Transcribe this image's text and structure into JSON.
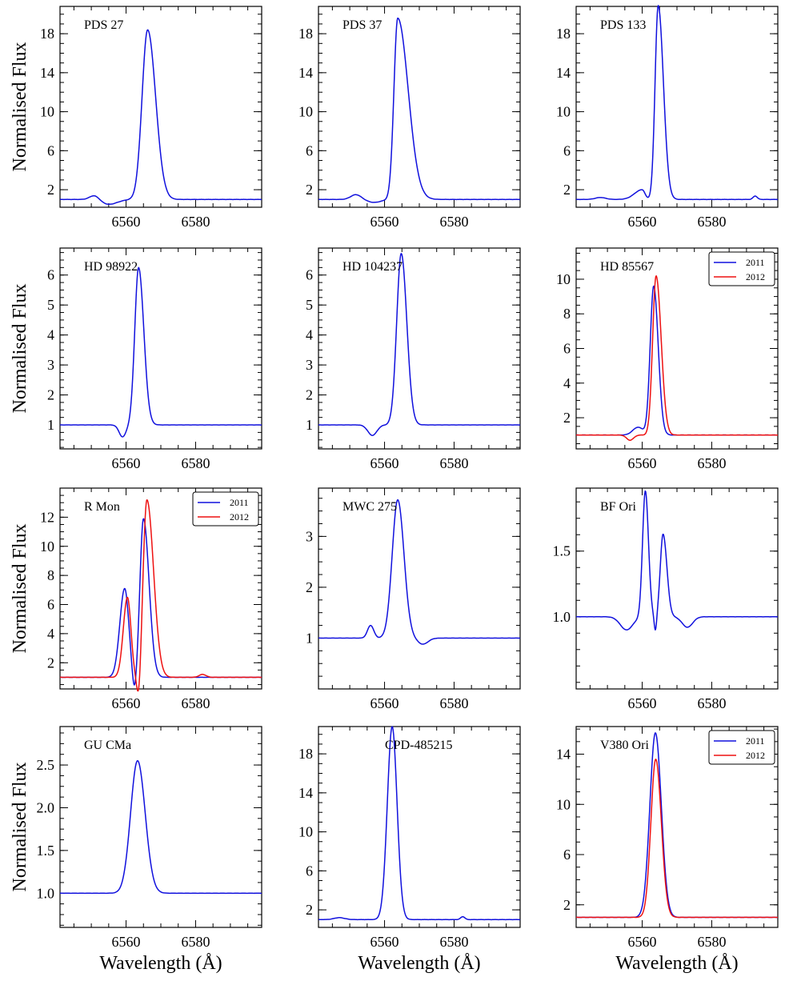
{
  "chart_data": {
    "type": "line",
    "xlabel": "Wavelength (Å)",
    "ylabel": "Normalised Flux",
    "xlim": [
      6541,
      6599
    ],
    "xticks": [
      6560,
      6580
    ],
    "colors": {
      "2011": "#1010dd",
      "2012": "#ee1111"
    },
    "panels": [
      {
        "title": "PDS 27",
        "ylim": [
          0.2,
          20.8
        ],
        "yticks": [
          2,
          6,
          10,
          14,
          18
        ],
        "legend": false,
        "series": [
          {
            "name": "2011",
            "peaks": [
              [
                6566.2,
                17.4,
                1.6,
                2.3
              ],
              [
                6551,
                0.5,
                1.4,
                1.4
              ],
              [
                6555,
                -0.5,
                2.5,
                2.5
              ]
            ]
          }
        ]
      },
      {
        "title": "PDS 37",
        "ylim": [
          0.2,
          20.8
        ],
        "yticks": [
          2,
          6,
          10,
          14,
          18
        ],
        "legend": false,
        "series": [
          {
            "name": "2011",
            "peaks": [
              [
                6563.8,
                18.6,
                1.1,
                3.0
              ],
              [
                6551.8,
                0.5,
                1.5,
                1.5
              ],
              [
                6557,
                -0.3,
                2,
                2
              ]
            ]
          }
        ]
      },
      {
        "title": "PDS 133",
        "ylim": [
          0.2,
          20.8
        ],
        "yticks": [
          2,
          6,
          10,
          14,
          18
        ],
        "legend": false,
        "series": [
          {
            "name": "2011",
            "peaks": [
              [
                6564.6,
                19.9,
                0.9,
                1.5
              ],
              [
                6560,
                1.0,
                2.2,
                0.8
              ],
              [
                6592.5,
                0.35,
                0.6,
                0.6
              ],
              [
                6548,
                0.2,
                1.5,
                1.5
              ]
            ]
          }
        ]
      },
      {
        "title": "HD 98922",
        "ylim": [
          0.2,
          6.9
        ],
        "yticks": [
          1,
          2,
          3,
          4,
          5,
          6
        ],
        "legend": false,
        "series": [
          {
            "name": "2011",
            "peaks": [
              [
                6563.6,
                5.25,
                1.1,
                1.5
              ],
              [
                6559,
                -0.4,
                1.0,
                1.0
              ]
            ]
          }
        ]
      },
      {
        "title": "HD 104237",
        "ylim": [
          0.2,
          6.9
        ],
        "yticks": [
          1,
          2,
          3,
          4,
          5,
          6
        ],
        "legend": false,
        "series": [
          {
            "name": "2011",
            "peaks": [
              [
                6564.8,
                5.72,
                1.3,
                1.6
              ],
              [
                6556.5,
                -0.35,
                1.3,
                1.3
              ]
            ]
          }
        ]
      },
      {
        "title": "HD 85567",
        "ylim": [
          0.2,
          11.8
        ],
        "yticks": [
          2,
          4,
          6,
          8,
          10
        ],
        "legend": true,
        "series": [
          {
            "name": "2011",
            "peaks": [
              [
                6563.3,
                8.6,
                1.0,
                1.3
              ],
              [
                6558.8,
                0.45,
                1.5,
                1.5
              ]
            ]
          },
          {
            "name": "2012",
            "peaks": [
              [
                6564.0,
                9.2,
                1.0,
                1.45
              ],
              [
                6556.5,
                -0.3,
                1.0,
                1.0
              ]
            ]
          }
        ]
      },
      {
        "title": "R Mon",
        "ylim": [
          0.2,
          14.0
        ],
        "yticks": [
          2,
          4,
          6,
          8,
          10,
          12
        ],
        "legend": true,
        "series": [
          {
            "name": "2011",
            "peaks": [
              [
                6565.0,
                10.9,
                1.0,
                1.6
              ],
              [
                6559.6,
                6.1,
                1.4,
                1.2
              ],
              [
                6562.4,
                -1.3,
                0.6,
                0.6
              ]
            ]
          },
          {
            "name": "2012",
            "peaks": [
              [
                6566.0,
                12.2,
                1.1,
                1.9
              ],
              [
                6560.4,
                5.5,
                1.2,
                1.0
              ],
              [
                6563.7,
                -2.0,
                0.6,
                0.6
              ],
              [
                6582,
                0.2,
                1.0,
                1.0
              ]
            ]
          }
        ]
      },
      {
        "title": "MWC 275",
        "ylim": [
          0.0,
          3.95
        ],
        "yticks": [
          1,
          2,
          3
        ],
        "legend": false,
        "series": [
          {
            "name": "2011",
            "peaks": [
              [
                6563.8,
                2.72,
                1.6,
                1.8
              ],
              [
                6556,
                0.25,
                0.9,
                0.9
              ],
              [
                6571,
                -0.12,
                1.5,
                1.5
              ]
            ]
          }
        ]
      },
      {
        "title": "BF Ori",
        "ylim": [
          0.45,
          1.98
        ],
        "yticks": [
          1.0,
          1.5
        ],
        "legend": false,
        "series": [
          {
            "name": "2011",
            "peaks": [
              [
                6560.9,
                0.96,
                0.8,
                0.9
              ],
              [
                6566.0,
                0.63,
                0.8,
                1.1
              ],
              [
                6563.8,
                -0.12,
                0.35,
                0.35
              ],
              [
                6555.5,
                -0.1,
                1.8,
                1.8
              ],
              [
                6573,
                -0.08,
                1.5,
                1.5
              ]
            ]
          }
        ]
      },
      {
        "title": "GU CMa",
        "ylim": [
          0.6,
          2.95
        ],
        "yticks": [
          1.0,
          1.5,
          2.0,
          2.5
        ],
        "legend": false,
        "series": [
          {
            "name": "2011",
            "peaks": [
              [
                6563.3,
                1.55,
                2.0,
                2.2
              ]
            ]
          }
        ]
      },
      {
        "title": "CPD-485215",
        "ylim": [
          0.2,
          20.8
        ],
        "yticks": [
          2,
          6,
          10,
          14,
          18
        ],
        "legend": false,
        "series": [
          {
            "name": "2011",
            "peaks": [
              [
                6562.2,
                19.8,
                1.4,
                1.4
              ],
              [
                6582.5,
                0.3,
                0.6,
                0.6
              ],
              [
                6547,
                0.2,
                1.5,
                1.5
              ]
            ]
          }
        ]
      },
      {
        "title": "V380 Ori",
        "ylim": [
          0.2,
          16.2
        ],
        "yticks": [
          2,
          6,
          10,
          14
        ],
        "legend": true,
        "series": [
          {
            "name": "2011",
            "peaks": [
              [
                6563.8,
                14.7,
                1.6,
                1.7
              ]
            ]
          },
          {
            "name": "2012",
            "peaks": [
              [
                6563.9,
                12.6,
                1.4,
                1.6
              ]
            ]
          }
        ]
      }
    ]
  }
}
